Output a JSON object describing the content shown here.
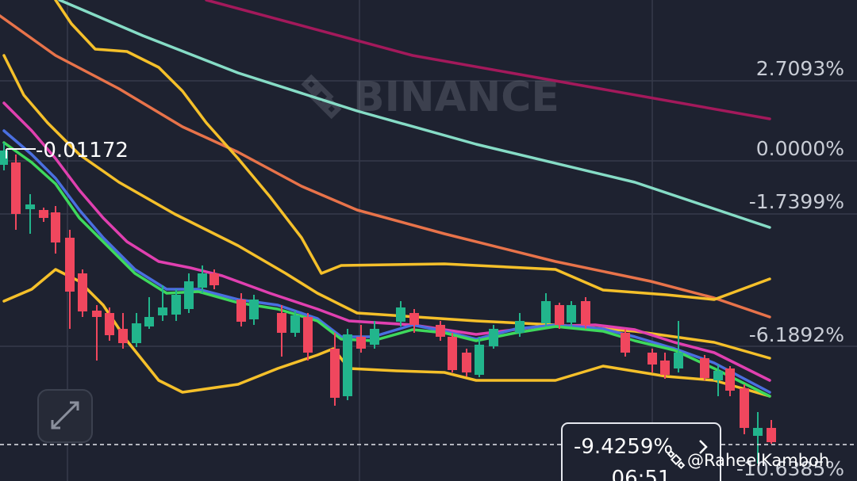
{
  "axis_labels": [
    "2.7093%",
    "0.0000%",
    "-1.7399%",
    "-6.1892%",
    "-10.6385%"
  ],
  "marker_label": "-0.01172",
  "watermark": "BINANCE",
  "price_tag": {
    "change": "-9.4259%",
    "countdown": "06:51"
  },
  "credit": "@RaheelKamboh"
}
